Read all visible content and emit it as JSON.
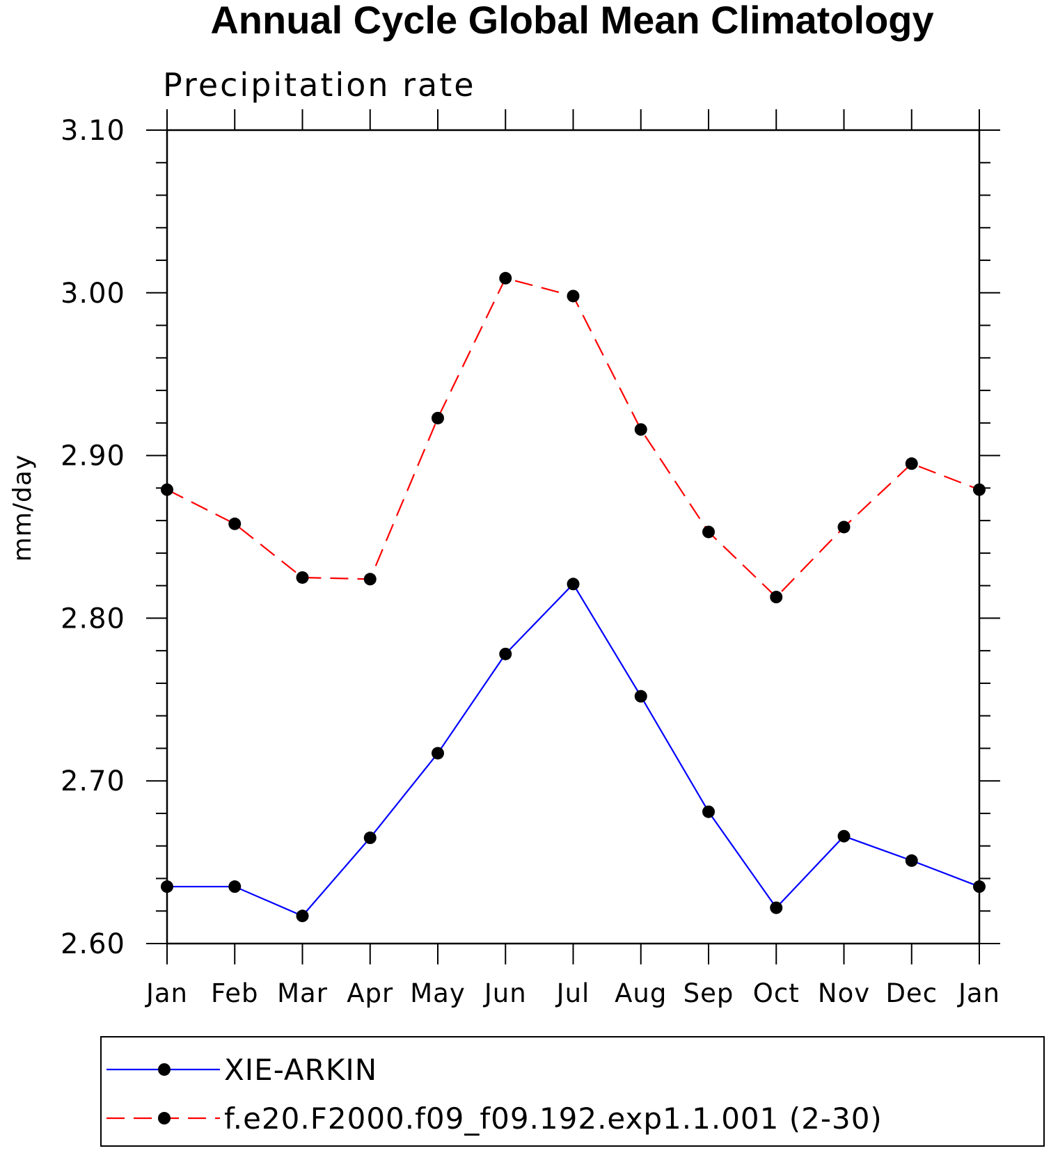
{
  "chart_data": {
    "type": "line",
    "title": "Annual Cycle Global Mean Climatology",
    "subtitle": "Precipitation rate",
    "xlabel": "",
    "ylabel": "mm/day",
    "categories": [
      "Jan",
      "Feb",
      "Mar",
      "Apr",
      "May",
      "Jun",
      "Jul",
      "Aug",
      "Sep",
      "Oct",
      "Nov",
      "Dec",
      "Jan"
    ],
    "ylim": [
      2.6,
      3.1
    ],
    "yticks": [
      "2.60",
      "2.70",
      "2.80",
      "2.90",
      "3.00",
      "3.10"
    ],
    "legend_position": "bottom",
    "grid": false,
    "series": [
      {
        "name": "XIE-ARKIN",
        "color": "#0000ff",
        "line_style": "solid",
        "marker": "filled-circle",
        "values": [
          2.635,
          2.635,
          2.617,
          2.665,
          2.717,
          2.778,
          2.821,
          2.752,
          2.681,
          2.622,
          2.666,
          2.651,
          2.635
        ]
      },
      {
        "name": "f.e20.F2000.f09_f09.192.exp1.1.001 (2-30)",
        "color": "#ff0000",
        "line_style": "dashed",
        "marker": "filled-circle",
        "values": [
          2.879,
          2.858,
          2.825,
          2.824,
          2.923,
          3.009,
          2.998,
          2.916,
          2.853,
          2.813,
          2.856,
          2.895,
          2.879
        ]
      }
    ]
  }
}
